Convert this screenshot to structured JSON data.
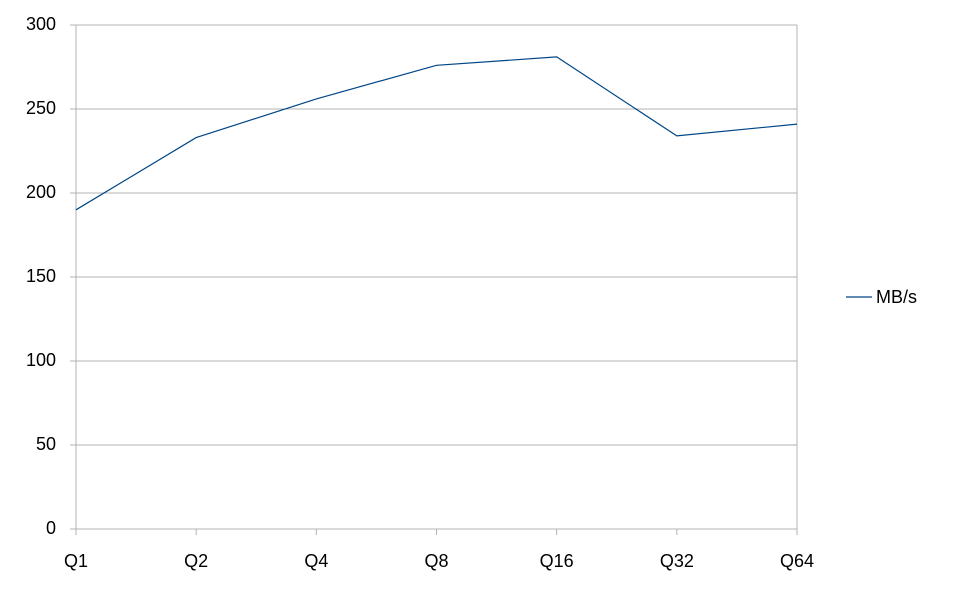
{
  "chart_data": {
    "type": "line",
    "categories": [
      "Q1",
      "Q2",
      "Q4",
      "Q8",
      "Q16",
      "Q32",
      "Q64"
    ],
    "series": [
      {
        "name": "MB/s",
        "color": "#004586",
        "values": [
          190,
          233,
          256,
          276,
          281,
          234,
          241
        ]
      }
    ],
    "ylim": [
      0,
      300
    ],
    "yticks": [
      0,
      50,
      100,
      150,
      200,
      250,
      300
    ],
    "grid": true,
    "legend": "right"
  }
}
